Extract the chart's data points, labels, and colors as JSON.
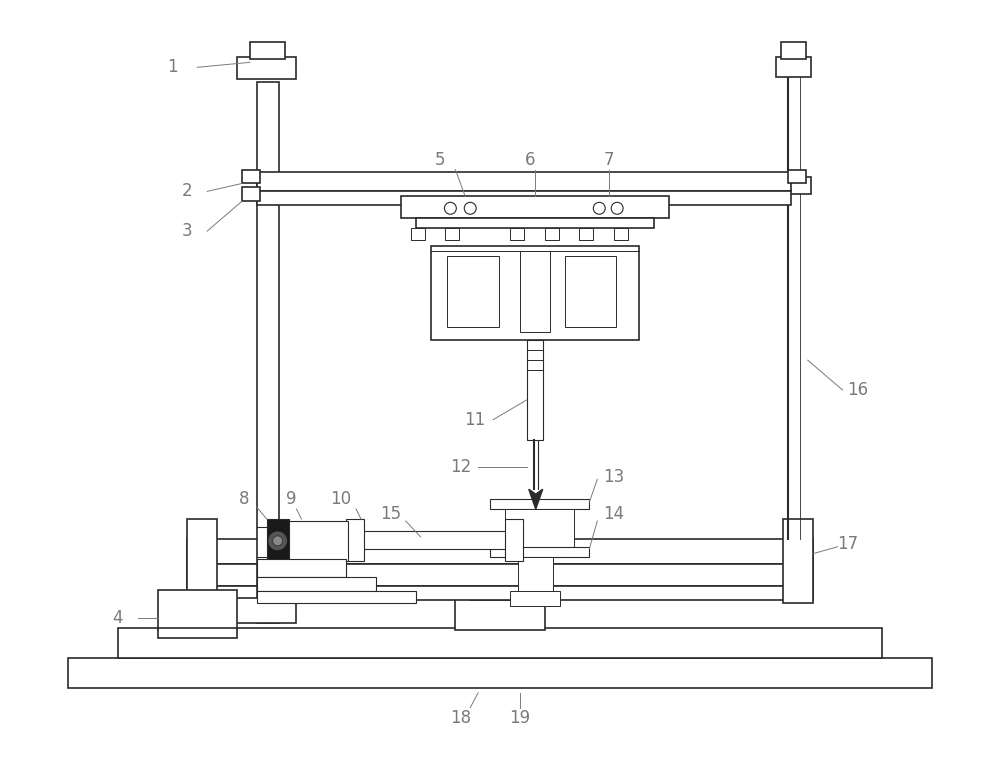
{
  "bg_color": "#ffffff",
  "line_color": "#2a2a2a",
  "label_color": "#7a7a7a",
  "fig_width": 10.0,
  "fig_height": 7.66
}
